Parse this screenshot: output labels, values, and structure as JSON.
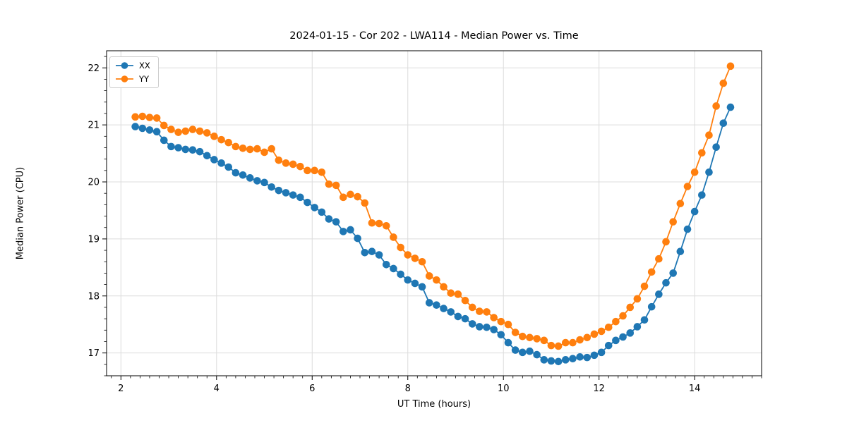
{
  "figure": {
    "background": "#ffffff"
  },
  "colors": {
    "grid": "#dcdcdc",
    "axis": "#000000",
    "text": "#000000",
    "series_xx": "#1f77b4",
    "series_yy": "#ff7f0e"
  },
  "legend": {
    "entries": [
      "XX",
      "YY"
    ]
  },
  "chart_data": {
    "type": "line",
    "title": "2024-01-15 - Cor 202 - LWA114 - Median Power vs. Time",
    "xlabel": "UT Time (hours)",
    "ylabel": "Median Power (CPU)",
    "xlim": [
      1.7,
      15.4
    ],
    "ylim": [
      16.6,
      22.3
    ],
    "x_ticks": [
      2,
      4,
      6,
      8,
      10,
      12,
      14
    ],
    "y_ticks": [
      17,
      18,
      19,
      20,
      21,
      22
    ],
    "minor_tick_step_x": 0.2,
    "minor_tick_step_y": 0.2,
    "grid": true,
    "legend_position": "upper-left",
    "marker": "circle",
    "x": [
      2.3,
      2.45,
      2.6,
      2.75,
      2.9,
      3.05,
      3.2,
      3.35,
      3.5,
      3.65,
      3.8,
      3.95,
      4.1,
      4.25,
      4.4,
      4.55,
      4.7,
      4.85,
      5.0,
      5.15,
      5.3,
      5.45,
      5.6,
      5.75,
      5.9,
      6.05,
      6.2,
      6.35,
      6.5,
      6.65,
      6.8,
      6.95,
      7.1,
      7.25,
      7.4,
      7.55,
      7.7,
      7.85,
      8.0,
      8.15,
      8.3,
      8.45,
      8.6,
      8.75,
      8.9,
      9.05,
      9.2,
      9.35,
      9.5,
      9.65,
      9.8,
      9.95,
      10.1,
      10.25,
      10.4,
      10.55,
      10.7,
      10.85,
      11.0,
      11.15,
      11.3,
      11.45,
      11.6,
      11.75,
      11.9,
      12.05,
      12.2,
      12.35,
      12.5,
      12.65,
      12.8,
      12.95,
      13.1,
      13.25,
      13.4,
      13.55,
      13.7,
      13.85,
      14.0,
      14.15,
      14.3,
      14.45,
      14.6,
      14.75
    ],
    "series": [
      {
        "name": "XX",
        "color": "#1f77b4",
        "values": [
          20.97,
          20.94,
          20.91,
          20.88,
          20.73,
          20.62,
          20.6,
          20.57,
          20.56,
          20.53,
          20.46,
          20.39,
          20.33,
          20.26,
          20.16,
          20.12,
          20.07,
          20.02,
          19.99,
          19.91,
          19.85,
          19.81,
          19.77,
          19.73,
          19.64,
          19.55,
          19.47,
          19.35,
          19.3,
          19.13,
          19.16,
          19.01,
          18.76,
          18.78,
          18.72,
          18.55,
          18.48,
          18.38,
          18.28,
          18.22,
          18.16,
          17.88,
          17.84,
          17.78,
          17.72,
          17.64,
          17.6,
          17.51,
          17.46,
          17.45,
          17.41,
          17.32,
          17.18,
          17.05,
          17.01,
          17.03,
          16.97,
          16.88,
          16.86,
          16.85,
          16.88,
          16.9,
          16.93,
          16.92,
          16.96,
          17.01,
          17.13,
          17.22,
          17.28,
          17.35,
          17.46,
          17.58,
          17.81,
          18.03,
          18.23,
          18.4,
          18.78,
          19.17,
          19.48,
          19.77,
          20.17,
          20.61,
          21.03,
          21.31
        ]
      },
      {
        "name": "YY",
        "color": "#ff7f0e",
        "values": [
          21.14,
          21.15,
          21.13,
          21.12,
          20.99,
          20.92,
          20.87,
          20.89,
          20.92,
          20.89,
          20.86,
          20.8,
          20.74,
          20.69,
          20.62,
          20.59,
          20.57,
          20.58,
          20.52,
          20.58,
          20.38,
          20.33,
          20.31,
          20.27,
          20.2,
          20.2,
          20.17,
          19.96,
          19.94,
          19.73,
          19.78,
          19.74,
          19.63,
          19.28,
          19.27,
          19.23,
          19.03,
          18.85,
          18.72,
          18.66,
          18.6,
          18.35,
          18.28,
          18.16,
          18.05,
          18.03,
          17.92,
          17.8,
          17.73,
          17.72,
          17.62,
          17.55,
          17.5,
          17.36,
          17.29,
          17.27,
          17.25,
          17.22,
          17.13,
          17.12,
          17.18,
          17.18,
          17.23,
          17.27,
          17.33,
          17.38,
          17.45,
          17.55,
          17.65,
          17.8,
          17.95,
          18.17,
          18.42,
          18.65,
          18.95,
          19.3,
          19.62,
          19.92,
          20.17,
          20.51,
          20.82,
          21.33,
          21.73,
          22.03
        ]
      }
    ]
  }
}
